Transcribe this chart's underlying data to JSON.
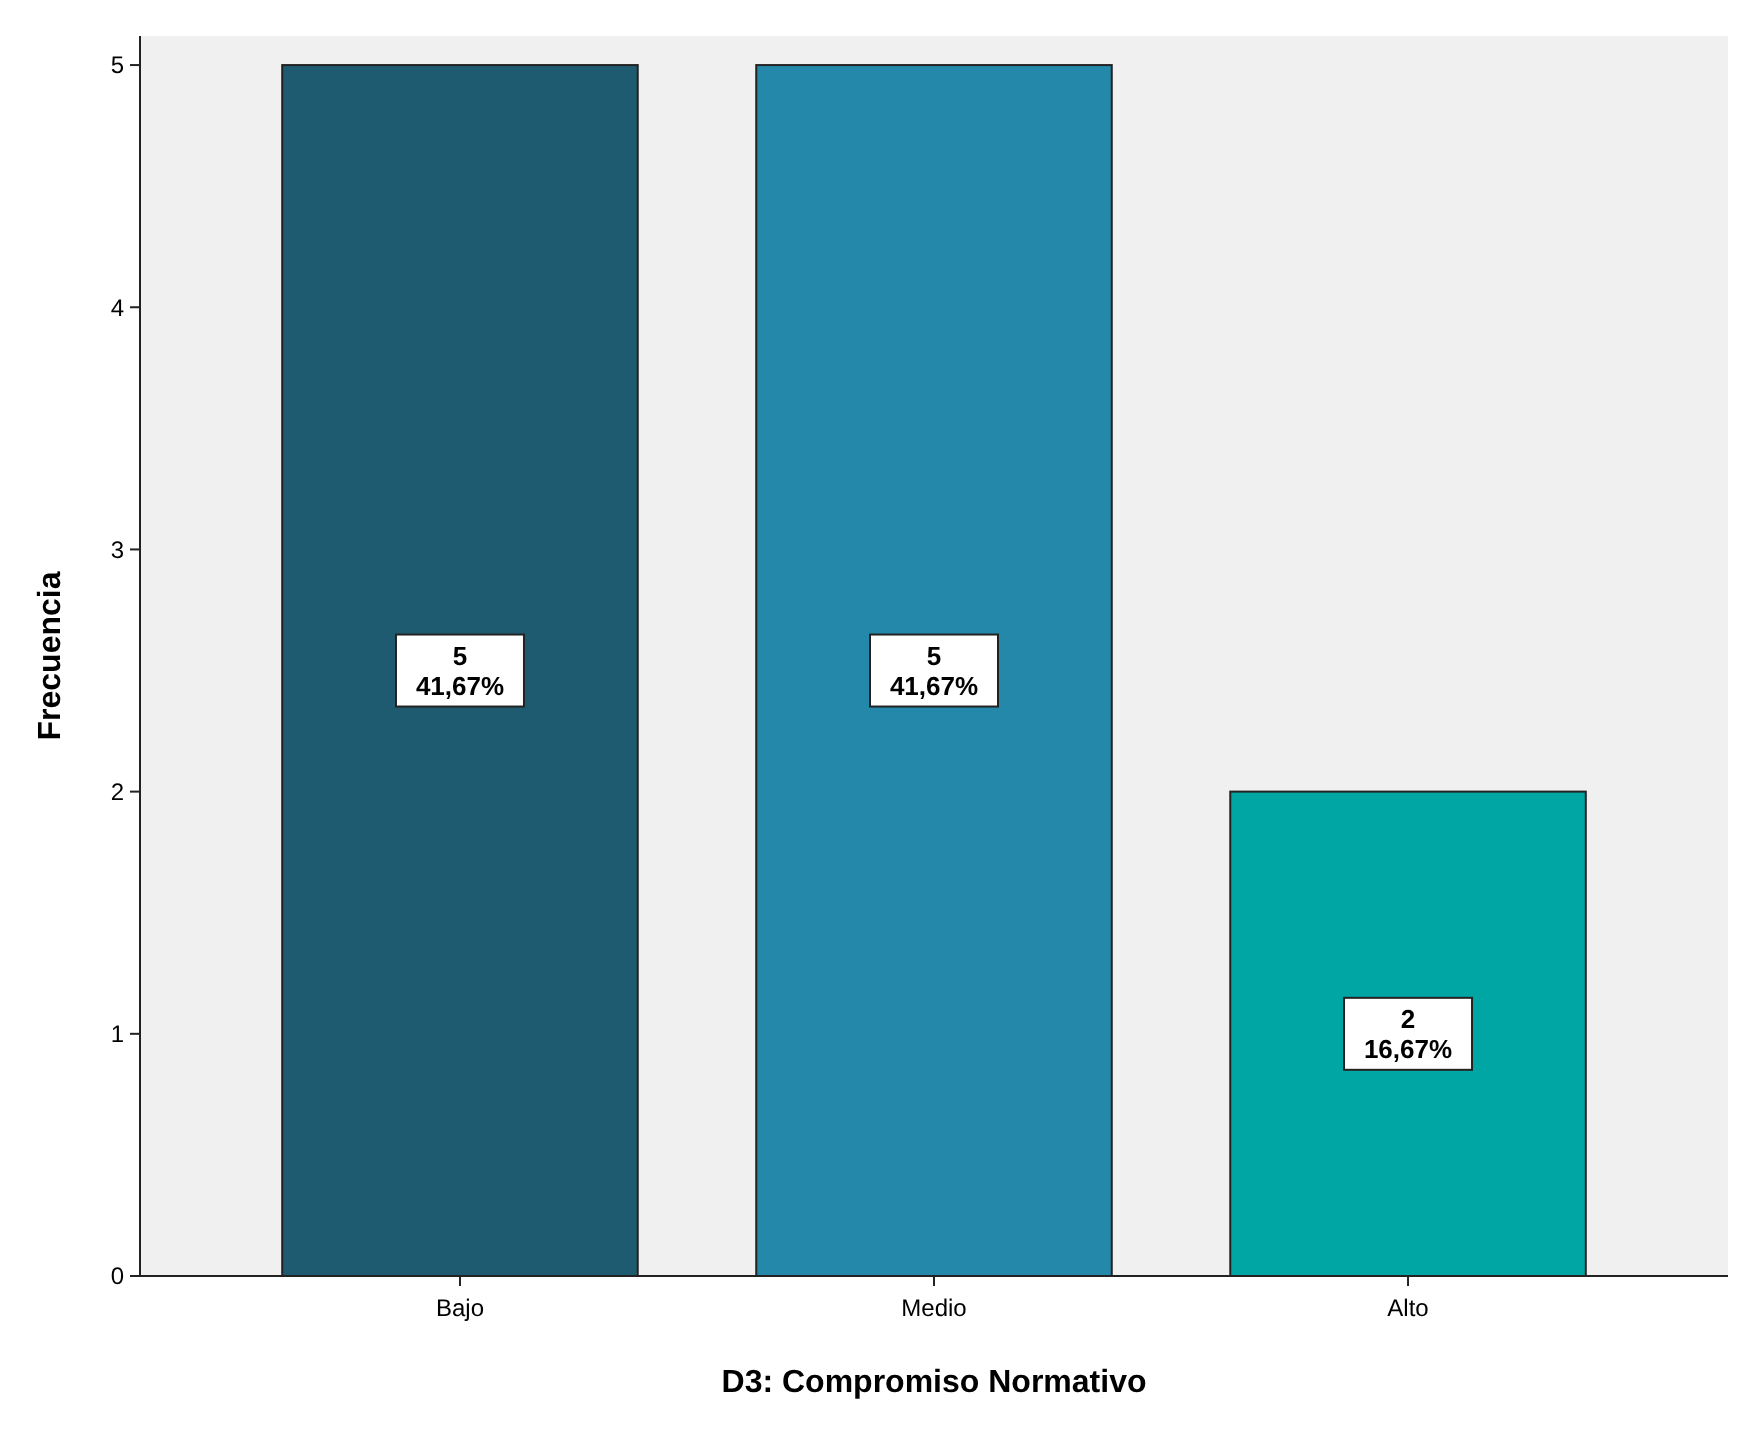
{
  "chart_data": {
    "type": "bar",
    "xlabel": "D3: Compromiso Normativo",
    "ylabel": "Frecuencia",
    "categories": [
      "Bajo",
      "Medio",
      "Alto"
    ],
    "values": [
      5,
      5,
      2
    ],
    "colors": [
      "#1f5b70",
      "#2488ab",
      "#00a6a4"
    ],
    "value_labels": [
      "5\n41,67%",
      "5\n41,67%",
      "2\n16,67%"
    ],
    "ylim": [
      0,
      5.12
    ],
    "yticks": [
      0,
      1,
      2,
      3,
      4,
      5
    ],
    "grid": false
  }
}
